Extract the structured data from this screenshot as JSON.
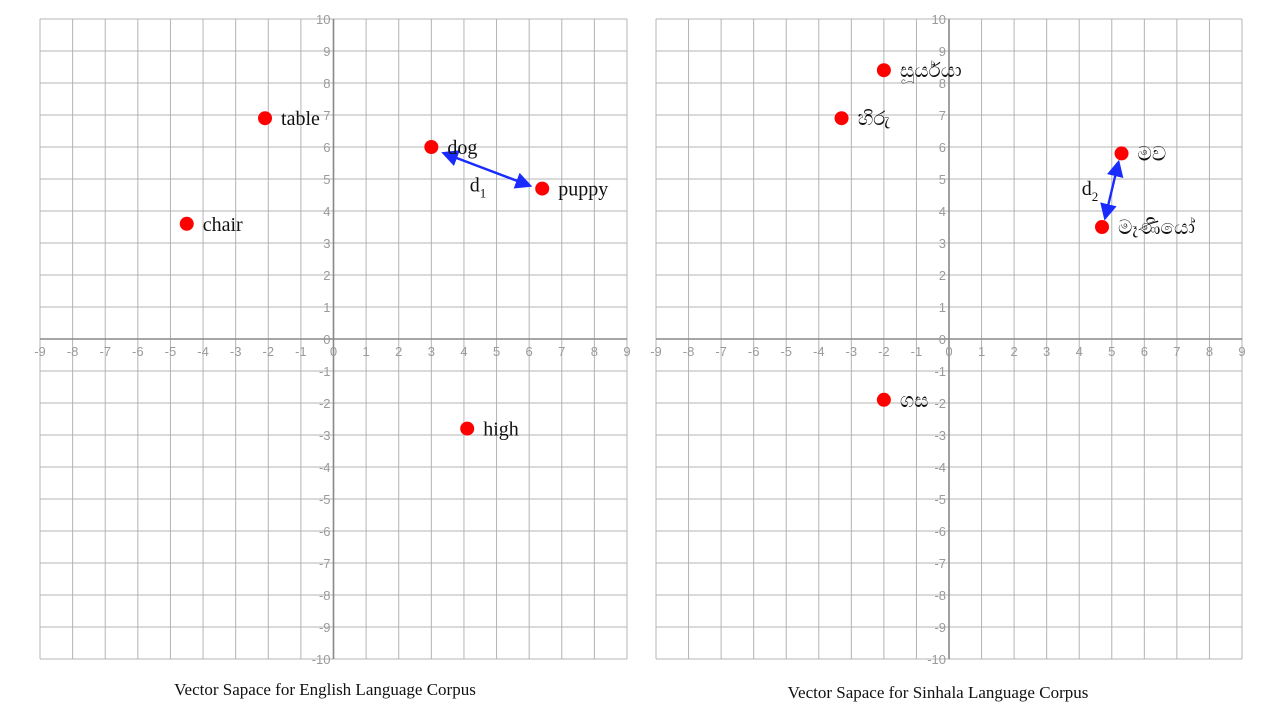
{
  "chart_data": [
    {
      "type": "scatter",
      "caption": "Vector Sapace for English Language Corpus",
      "xlim": [
        -9,
        9
      ],
      "ylim": [
        -10,
        10
      ],
      "xticks": [
        -9,
        -8,
        -7,
        -6,
        -5,
        -4,
        -3,
        -2,
        -1,
        0,
        1,
        2,
        3,
        4,
        5,
        6,
        7,
        8,
        9
      ],
      "yticks": [
        -10,
        -9,
        -8,
        -7,
        -6,
        -5,
        -4,
        -3,
        -2,
        -1,
        0,
        1,
        2,
        3,
        4,
        5,
        6,
        7,
        8,
        9,
        10
      ],
      "grid": true,
      "point_color": "#ff0000",
      "arrow_color": "#1a2bff",
      "points": [
        {
          "label": "table",
          "x": -2.1,
          "y": 6.9
        },
        {
          "label": "dog",
          "x": 3.0,
          "y": 6.0
        },
        {
          "label": "puppy",
          "x": 6.4,
          "y": 4.7
        },
        {
          "label": "chair",
          "x": -4.5,
          "y": 3.6
        },
        {
          "label": "high",
          "x": 4.1,
          "y": -2.8
        }
      ],
      "arrow": {
        "from": [
          3.4,
          5.8
        ],
        "to": [
          6.0,
          4.8
        ],
        "label": "d",
        "sub": "1"
      }
    },
    {
      "type": "scatter",
      "caption": "Vector Sapace for Sinhala Language Corpus",
      "xlim": [
        -9,
        9
      ],
      "ylim": [
        -10,
        10
      ],
      "xticks": [
        -9,
        -8,
        -7,
        -6,
        -5,
        -4,
        -3,
        -2,
        -1,
        0,
        1,
        2,
        3,
        4,
        5,
        6,
        7,
        8,
        9
      ],
      "yticks": [
        -10,
        -9,
        -8,
        -7,
        -6,
        -5,
        -4,
        -3,
        -2,
        -1,
        0,
        1,
        2,
        3,
        4,
        5,
        6,
        7,
        8,
        9,
        10
      ],
      "grid": true,
      "point_color": "#ff0000",
      "arrow_color": "#1a2bff",
      "points": [
        {
          "label": "සූර්යයා",
          "x": -2.0,
          "y": 8.4
        },
        {
          "label": "හිරු",
          "x": -3.3,
          "y": 6.9
        },
        {
          "label": "මව",
          "x": 5.3,
          "y": 5.8
        },
        {
          "label": "මෑණියෝ",
          "x": 4.7,
          "y": 3.5
        },
        {
          "label": "ගස",
          "x": -2.0,
          "y": -1.9
        }
      ],
      "arrow": {
        "from": [
          5.2,
          5.5
        ],
        "to": [
          4.8,
          3.8
        ],
        "label": "d",
        "sub": "2"
      }
    }
  ]
}
